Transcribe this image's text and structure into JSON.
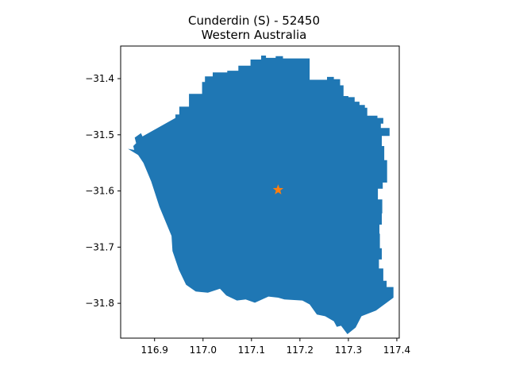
{
  "title": {
    "line1": "Cunderdin (S) - 52450",
    "line2": "Western Australia"
  },
  "colors": {
    "region_fill": "#1f77b4",
    "marker": "#ff7f0e",
    "axes": "#000000"
  },
  "chart_data": {
    "type": "map",
    "title": "Cunderdin (S) - 52450",
    "subtitle": "Western Australia",
    "xlim": [
      116.83,
      117.405
    ],
    "ylim": [
      -31.862,
      -31.342
    ],
    "x_ticks": [
      116.9,
      117.0,
      117.1,
      117.2,
      117.3,
      117.4
    ],
    "x_tick_labels": [
      "116.9",
      "117.0",
      "117.1",
      "117.2",
      "117.3",
      "117.4"
    ],
    "y_ticks": [
      -31.4,
      -31.5,
      -31.6,
      -31.7,
      -31.8
    ],
    "y_tick_labels": [
      "−31.4",
      "−31.5",
      "−31.6",
      "−31.7",
      "−31.8"
    ],
    "grid": false,
    "centroid": {
      "x": 117.155,
      "y": -31.598,
      "marker": "star"
    },
    "boundary": [
      [
        116.845,
        -31.525
      ],
      [
        116.858,
        -31.527
      ],
      [
        116.856,
        -31.52
      ],
      [
        116.862,
        -31.515
      ],
      [
        116.859,
        -31.505
      ],
      [
        116.872,
        -31.497
      ],
      [
        116.875,
        -31.503
      ],
      [
        116.943,
        -31.47
      ],
      [
        116.943,
        -31.464
      ],
      [
        116.951,
        -31.464
      ],
      [
        116.951,
        -31.45
      ],
      [
        116.971,
        -31.45
      ],
      [
        116.971,
        -31.427
      ],
      [
        116.998,
        -31.427
      ],
      [
        116.998,
        -31.406
      ],
      [
        117.004,
        -31.406
      ],
      [
        117.004,
        -31.396
      ],
      [
        117.02,
        -31.396
      ],
      [
        117.02,
        -31.389
      ],
      [
        117.05,
        -31.389
      ],
      [
        117.05,
        -31.386
      ],
      [
        117.073,
        -31.386
      ],
      [
        117.073,
        -31.377
      ],
      [
        117.098,
        -31.377
      ],
      [
        117.098,
        -31.366
      ],
      [
        117.12,
        -31.366
      ],
      [
        117.12,
        -31.359
      ],
      [
        117.13,
        -31.359
      ],
      [
        117.13,
        -31.363
      ],
      [
        117.15,
        -31.363
      ],
      [
        117.15,
        -31.36
      ],
      [
        117.165,
        -31.36
      ],
      [
        117.165,
        -31.364
      ],
      [
        117.22,
        -31.364
      ],
      [
        117.22,
        -31.402
      ],
      [
        117.256,
        -31.402
      ],
      [
        117.256,
        -31.397
      ],
      [
        117.27,
        -31.397
      ],
      [
        117.27,
        -31.401
      ],
      [
        117.283,
        -31.401
      ],
      [
        117.283,
        -31.412
      ],
      [
        117.29,
        -31.412
      ],
      [
        117.29,
        -31.431
      ],
      [
        117.3,
        -31.431
      ],
      [
        117.3,
        -31.433
      ],
      [
        117.313,
        -31.433
      ],
      [
        117.313,
        -31.441
      ],
      [
        117.323,
        -31.441
      ],
      [
        117.323,
        -31.447
      ],
      [
        117.334,
        -31.447
      ],
      [
        117.334,
        -31.452
      ],
      [
        117.339,
        -31.452
      ],
      [
        117.339,
        -31.466
      ],
      [
        117.36,
        -31.466
      ],
      [
        117.36,
        -31.47
      ],
      [
        117.372,
        -31.47
      ],
      [
        117.372,
        -31.48
      ],
      [
        117.367,
        -31.48
      ],
      [
        117.367,
        -31.488
      ],
      [
        117.385,
        -31.488
      ],
      [
        117.385,
        -31.502
      ],
      [
        117.369,
        -31.502
      ],
      [
        117.369,
        -31.52
      ],
      [
        117.374,
        -31.52
      ],
      [
        117.374,
        -31.545
      ],
      [
        117.38,
        -31.545
      ],
      [
        117.38,
        -31.585
      ],
      [
        117.371,
        -31.585
      ],
      [
        117.371,
        -31.596
      ],
      [
        117.361,
        -31.596
      ],
      [
        117.361,
        -31.615
      ],
      [
        117.37,
        -31.615
      ],
      [
        117.37,
        -31.64
      ],
      [
        117.369,
        -31.64
      ],
      [
        117.369,
        -31.66
      ],
      [
        117.364,
        -31.66
      ],
      [
        117.364,
        -31.676
      ],
      [
        117.365,
        -31.676
      ],
      [
        117.365,
        -31.702
      ],
      [
        117.369,
        -31.702
      ],
      [
        117.369,
        -31.722
      ],
      [
        117.363,
        -31.722
      ],
      [
        117.363,
        -31.738
      ],
      [
        117.372,
        -31.738
      ],
      [
        117.372,
        -31.76
      ],
      [
        117.379,
        -31.76
      ],
      [
        117.379,
        -31.771
      ],
      [
        117.393,
        -31.771
      ],
      [
        117.393,
        -31.79
      ],
      [
        117.357,
        -31.813
      ],
      [
        117.327,
        -31.823
      ],
      [
        117.315,
        -31.843
      ],
      [
        117.298,
        -31.855
      ],
      [
        117.285,
        -31.84
      ],
      [
        117.276,
        -31.842
      ],
      [
        117.27,
        -31.832
      ],
      [
        117.252,
        -31.823
      ],
      [
        117.235,
        -31.82
      ],
      [
        117.22,
        -31.802
      ],
      [
        117.205,
        -31.795
      ],
      [
        117.168,
        -31.793
      ],
      [
        117.155,
        -31.79
      ],
      [
        117.135,
        -31.788
      ],
      [
        117.107,
        -31.799
      ],
      [
        117.088,
        -31.793
      ],
      [
        117.07,
        -31.795
      ],
      [
        117.048,
        -31.786
      ],
      [
        117.035,
        -31.774
      ],
      [
        117.01,
        -31.781
      ],
      [
        116.985,
        -31.779
      ],
      [
        116.965,
        -31.767
      ],
      [
        116.95,
        -31.74
      ],
      [
        116.937,
        -31.707
      ],
      [
        116.935,
        -31.68
      ],
      [
        116.91,
        -31.628
      ],
      [
        116.893,
        -31.583
      ],
      [
        116.877,
        -31.55
      ],
      [
        116.866,
        -31.536
      ]
    ]
  }
}
